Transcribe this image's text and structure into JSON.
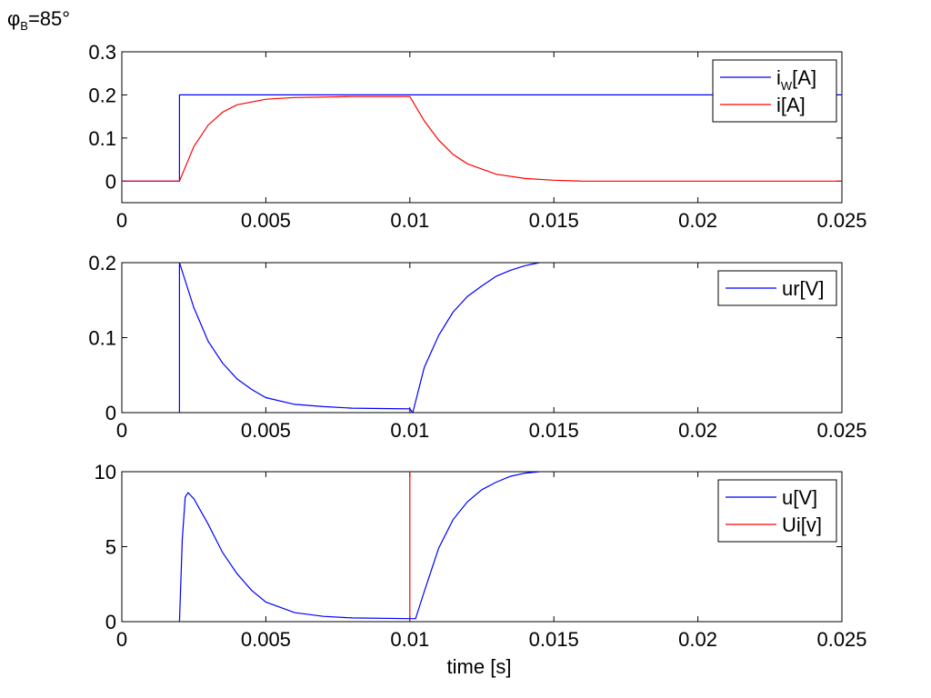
{
  "figure": {
    "phi_symbol": "φ",
    "phi_subscript": "B",
    "phi_value": "=85°",
    "xlabel": "time [s]"
  },
  "chart_data": [
    {
      "type": "line",
      "xlim": [
        0,
        0.025
      ],
      "ylim": [
        -0.05,
        0.3
      ],
      "x_ticks": [
        "0",
        "0.005",
        "0.01",
        "0.015",
        "0.02",
        "0.025"
      ],
      "y_ticks": [
        "0",
        "0.1",
        "0.2",
        "0.3"
      ],
      "legend_position": "top-right",
      "grid": false,
      "series": [
        {
          "name": "i_W[A]",
          "legend_main": "i",
          "legend_sub": "W",
          "legend_tail": "[A]",
          "color": "#0000ff",
          "points": [
            [
              0,
              0
            ],
            [
              0.002,
              0
            ],
            [
              0.002,
              0.2
            ],
            [
              0.025,
              0.2
            ]
          ]
        },
        {
          "name": "i[A]",
          "legend_main": "i[A]",
          "color": "#ff0000",
          "points": [
            [
              0,
              0
            ],
            [
              0.002,
              0
            ],
            [
              0.0025,
              0.08
            ],
            [
              0.003,
              0.13
            ],
            [
              0.0035,
              0.16
            ],
            [
              0.004,
              0.177
            ],
            [
              0.005,
              0.19
            ],
            [
              0.006,
              0.194
            ],
            [
              0.008,
              0.196
            ],
            [
              0.01,
              0.196
            ],
            [
              0.0105,
              0.14
            ],
            [
              0.011,
              0.095
            ],
            [
              0.0115,
              0.062
            ],
            [
              0.012,
              0.04
            ],
            [
              0.013,
              0.016
            ],
            [
              0.014,
              0.006
            ],
            [
              0.015,
              0.002
            ],
            [
              0.016,
              0
            ],
            [
              0.025,
              0
            ]
          ]
        }
      ]
    },
    {
      "type": "line",
      "xlim": [
        0,
        0.025
      ],
      "ylim": [
        0,
        0.2
      ],
      "x_ticks": [
        "0",
        "0.005",
        "0.01",
        "0.015",
        "0.02",
        "0.025"
      ],
      "y_ticks": [
        "0",
        "0.1",
        "0.2"
      ],
      "legend_position": "top-right",
      "grid": false,
      "series": [
        {
          "name": "ur[V]",
          "legend_main": "ur[V]",
          "color": "#0000ff",
          "points": [
            [
              0.002,
              0
            ],
            [
              0.002,
              0.2
            ],
            [
              0.0025,
              0.14
            ],
            [
              0.003,
              0.095
            ],
            [
              0.0035,
              0.066
            ],
            [
              0.004,
              0.045
            ],
            [
              0.0045,
              0.031
            ],
            [
              0.005,
              0.02
            ],
            [
              0.006,
              0.011
            ],
            [
              0.007,
              0.008
            ],
            [
              0.008,
              0.006
            ],
            [
              0.01,
              0.005
            ],
            [
              0.0101,
              0
            ],
            [
              0.0105,
              0.06
            ],
            [
              0.011,
              0.103
            ],
            [
              0.0115,
              0.134
            ],
            [
              0.012,
              0.155
            ],
            [
              0.0125,
              0.169
            ],
            [
              0.013,
              0.182
            ],
            [
              0.0135,
              0.19
            ],
            [
              0.014,
              0.196
            ],
            [
              0.0145,
              0.2
            ]
          ]
        }
      ]
    },
    {
      "type": "line",
      "xlim": [
        0,
        0.025
      ],
      "ylim": [
        0,
        10
      ],
      "x_ticks": [
        "0",
        "0.005",
        "0.01",
        "0.015",
        "0.02",
        "0.025"
      ],
      "y_ticks": [
        "0",
        "5",
        "10"
      ],
      "legend_position": "top-right",
      "grid": false,
      "series": [
        {
          "name": "u[V]",
          "legend_main": "u[V]",
          "color": "#0000ff",
          "points": [
            [
              0.002,
              0
            ],
            [
              0.0021,
              5.5
            ],
            [
              0.0022,
              8.3
            ],
            [
              0.0023,
              8.6
            ],
            [
              0.0025,
              8.2
            ],
            [
              0.003,
              6.5
            ],
            [
              0.0035,
              4.6
            ],
            [
              0.004,
              3.2
            ],
            [
              0.0045,
              2.1
            ],
            [
              0.005,
              1.3
            ],
            [
              0.006,
              0.6
            ],
            [
              0.007,
              0.35
            ],
            [
              0.008,
              0.25
            ],
            [
              0.01,
              0.2
            ],
            [
              0.0102,
              0.2
            ],
            [
              0.0105,
              2.0
            ],
            [
              0.011,
              4.9
            ],
            [
              0.0115,
              6.8
            ],
            [
              0.012,
              8.0
            ],
            [
              0.0125,
              8.8
            ],
            [
              0.013,
              9.3
            ],
            [
              0.0135,
              9.7
            ],
            [
              0.014,
              9.9
            ],
            [
              0.0145,
              10.0
            ]
          ]
        },
        {
          "name": "Ui[v]",
          "legend_main": "Ui[v]",
          "color": "#ff0000",
          "points": [
            [
              0.01,
              0.2
            ],
            [
              0.01,
              10
            ]
          ]
        }
      ]
    }
  ]
}
